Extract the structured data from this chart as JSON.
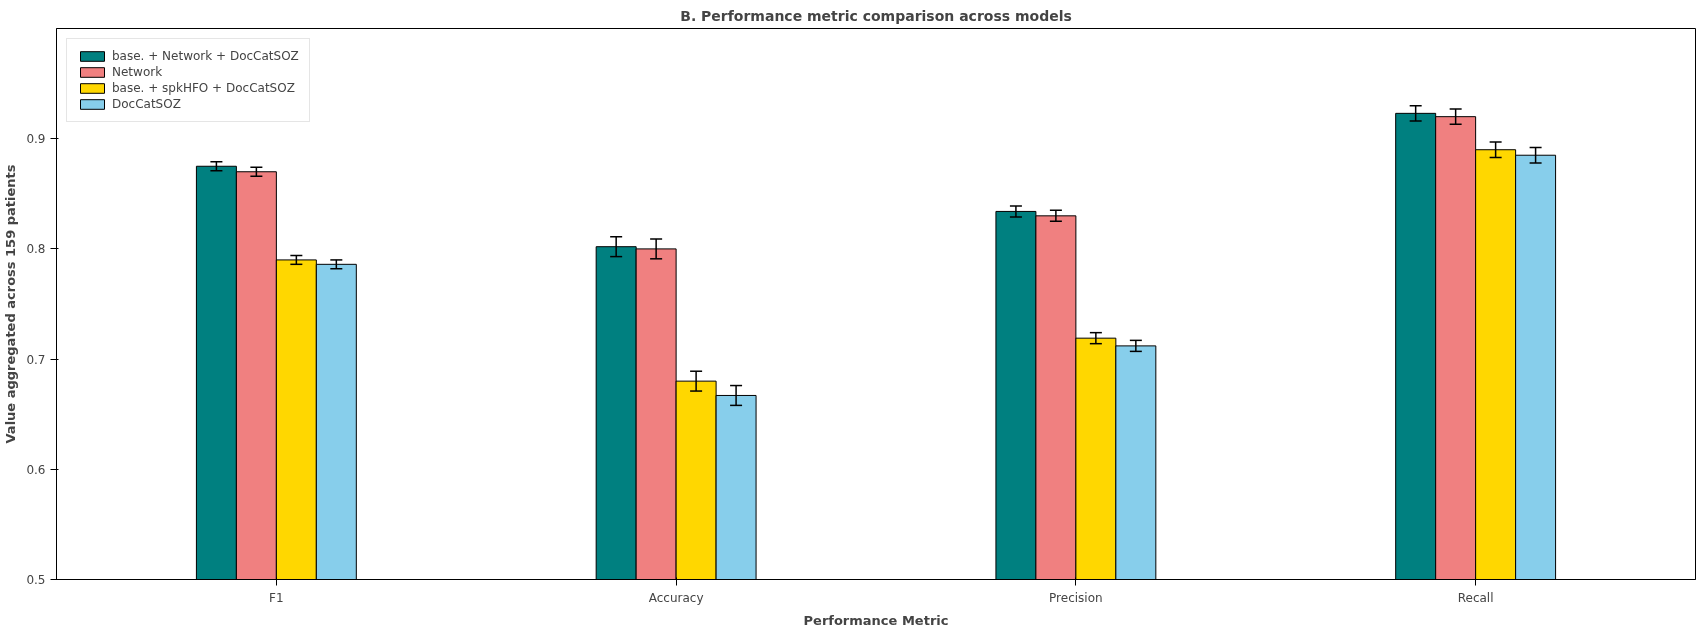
{
  "chart_data": {
    "type": "bar",
    "title": "B. Performance metric comparison across models",
    "xlabel": "Performance Metric",
    "ylabel": "Value aggregated across 159 patients",
    "categories": [
      "F1",
      "Accuracy",
      "Precision",
      "Recall"
    ],
    "series": [
      {
        "name": "base. + Network + DocCatSOZ",
        "color": "#008080",
        "values": [
          0.875,
          0.802,
          0.834,
          0.923
        ],
        "errors": [
          0.004,
          0.009,
          0.005,
          0.007
        ]
      },
      {
        "name": "Network",
        "color": "#f08080",
        "values": [
          0.87,
          0.8,
          0.83,
          0.92
        ],
        "errors": [
          0.004,
          0.009,
          0.005,
          0.007
        ]
      },
      {
        "name": "base. + spkHFO + DocCatSOZ",
        "color": "#ffd700",
        "values": [
          0.79,
          0.68,
          0.719,
          0.89
        ],
        "errors": [
          0.004,
          0.009,
          0.005,
          0.007
        ]
      },
      {
        "name": "DocCatSOZ",
        "color": "#87ceeb",
        "values": [
          0.786,
          0.667,
          0.712,
          0.885
        ],
        "errors": [
          0.004,
          0.009,
          0.005,
          0.007
        ]
      }
    ],
    "ylim": [
      0.5,
      1.0
    ],
    "yticks": [
      0.5,
      0.6,
      0.7,
      0.8,
      0.9
    ],
    "grid": false,
    "legend": "top left"
  }
}
